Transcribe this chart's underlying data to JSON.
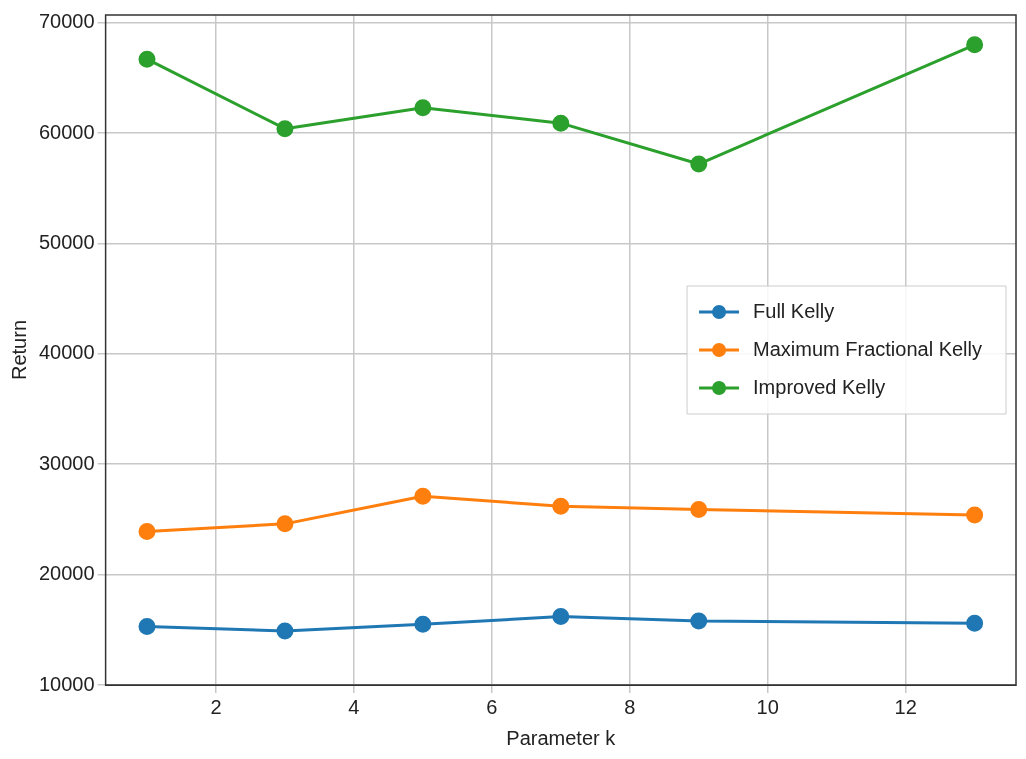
{
  "chart_data": {
    "type": "line",
    "xlabel": "Parameter k",
    "ylabel": "Return",
    "xlim": [
      0.4,
      13.6
    ],
    "xticks": [
      2,
      4,
      6,
      8,
      10,
      12
    ],
    "ylim": [
      10000,
      70700
    ],
    "yticks": [
      10000,
      20000,
      30000,
      40000,
      50000,
      60000,
      70000
    ],
    "grid": true,
    "legend": "right",
    "marker": "circle",
    "line_style": "solid",
    "series": [
      {
        "name": "Full Kelly",
        "color": "#1f77b4",
        "x": [
          1,
          3,
          5,
          7,
          9,
          13
        ],
        "values": [
          15300,
          14900,
          15500,
          16200,
          15800,
          15600
        ]
      },
      {
        "name": "Maximum Fractional Kelly",
        "color": "#ff7f0e",
        "x": [
          1,
          3,
          5,
          7,
          9,
          13
        ],
        "values": [
          23900,
          24600,
          27100,
          26200,
          25900,
          25400
        ]
      },
      {
        "name": "Improved Kelly",
        "color": "#2ca02c",
        "x": [
          1,
          3,
          5,
          7,
          9,
          13
        ],
        "values": [
          66700,
          60400,
          62300,
          60900,
          57200,
          68000
        ]
      }
    ]
  }
}
